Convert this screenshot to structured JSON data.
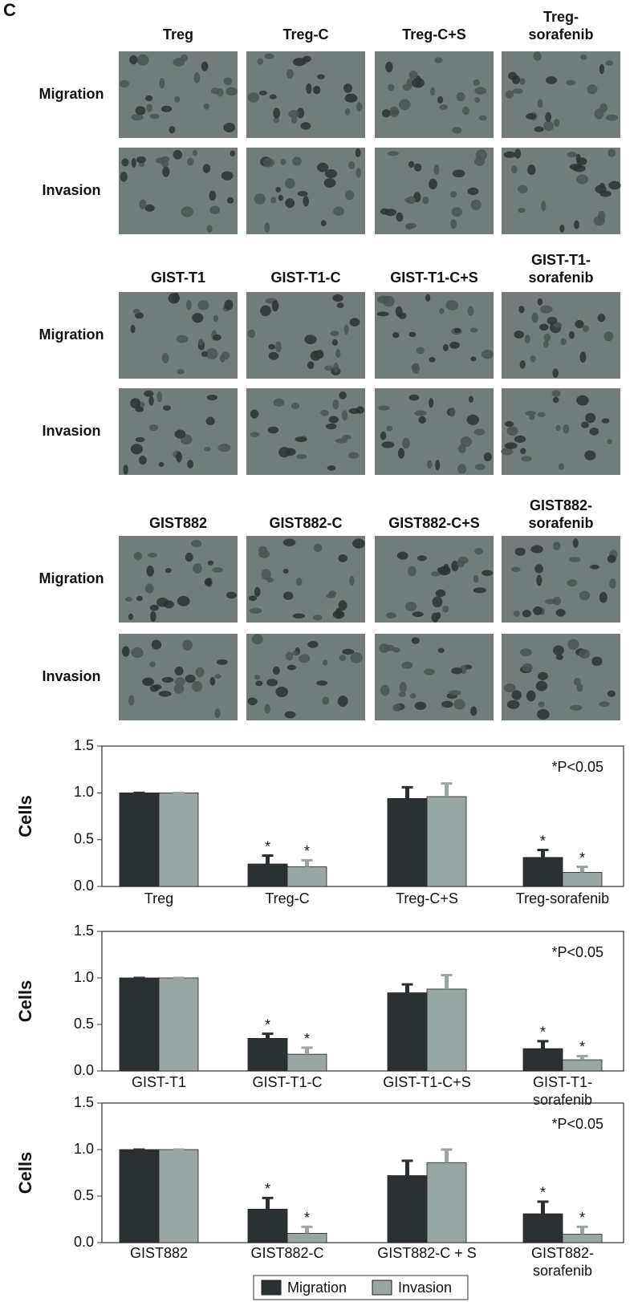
{
  "panel_label": "C",
  "image_grid": [
    {
      "columns": [
        "Treg",
        "Treg-C",
        "Treg-C+S",
        "Treg-\nsorafenib"
      ],
      "rows": [
        "Migration",
        "Invasion"
      ]
    },
    {
      "columns": [
        "GIST-T1",
        "GIST-T1-C",
        "GIST-T1-C+S",
        "GIST-T1-\nsorafenib"
      ],
      "rows": [
        "Migration",
        "Invasion"
      ]
    },
    {
      "columns": [
        "GIST882",
        "GIST882-C",
        "GIST882-C+S",
        "GIST882-\nsorafenib"
      ],
      "rows": [
        "Migration",
        "Invasion"
      ]
    }
  ],
  "chart_data": [
    {
      "type": "bar",
      "ylabel": "Cells",
      "annotation": "*P<0.05",
      "categories": [
        "Treg",
        "Treg-C",
        "Treg-C+S",
        "Treg-sorafenib"
      ],
      "series": [
        {
          "name": "Migration",
          "color": "#2b3032",
          "values": [
            1.0,
            0.24,
            0.94,
            0.31
          ],
          "errors": [
            0,
            0.09,
            0.12,
            0.08
          ],
          "markers": [
            null,
            "*",
            null,
            "*"
          ]
        },
        {
          "name": "Invasion",
          "color": "#9aa6a4",
          "values": [
            1.0,
            0.21,
            0.96,
            0.15
          ],
          "errors": [
            0,
            0.07,
            0.14,
            0.06
          ],
          "markers": [
            null,
            "*",
            null,
            "*"
          ]
        }
      ],
      "ylim": [
        0,
        1.5
      ],
      "yticks": [
        {
          "value": 0,
          "label": "0.0"
        },
        0.5,
        {
          "value": 1,
          "label": "1.0"
        },
        1.5
      ]
    },
    {
      "type": "bar",
      "ylabel": "Cells",
      "annotation": "*P<0.05",
      "categories": [
        "GIST-T1",
        "GIST-T1-C",
        "GIST-T1-C+S",
        "GIST-T1-\nsorafenib"
      ],
      "series": [
        {
          "name": "Migration",
          "color": "#2b3032",
          "values": [
            1.0,
            0.35,
            0.84,
            0.24
          ],
          "errors": [
            0,
            0.05,
            0.09,
            0.08
          ],
          "markers": [
            null,
            "*",
            null,
            "*"
          ]
        },
        {
          "name": "Invasion",
          "color": "#9aa6a4",
          "values": [
            1.0,
            0.18,
            0.88,
            0.12
          ],
          "errors": [
            0,
            0.07,
            0.15,
            0.04
          ],
          "markers": [
            null,
            "*",
            null,
            "*"
          ]
        }
      ],
      "ylim": [
        0,
        1.5
      ],
      "yticks": [
        {
          "value": 0,
          "label": "0.0"
        },
        0.5,
        {
          "value": 1,
          "label": "1.0"
        },
        1.5
      ]
    },
    {
      "type": "bar",
      "ylabel": "Cells",
      "annotation": "*P<0.05",
      "categories": [
        "GIST882",
        "GIST882-C",
        "GIST882-C + S",
        "GIST882-\nsorafenib"
      ],
      "series": [
        {
          "name": "Migration",
          "color": "#2b3032",
          "values": [
            1.0,
            0.36,
            0.72,
            0.31
          ],
          "errors": [
            0,
            0.12,
            0.16,
            0.13
          ],
          "markers": [
            null,
            "*",
            null,
            "*"
          ]
        },
        {
          "name": "Invasion",
          "color": "#9aa6a4",
          "values": [
            1.0,
            0.1,
            0.86,
            0.09
          ],
          "errors": [
            0,
            0.07,
            0.14,
            0.08
          ],
          "markers": [
            null,
            "*",
            null,
            "*"
          ]
        }
      ],
      "ylim": [
        0,
        1.5
      ],
      "yticks": [
        {
          "value": 0,
          "label": "0.0"
        },
        0.5,
        {
          "value": 1,
          "label": "1.0"
        },
        1.5
      ]
    }
  ]
}
